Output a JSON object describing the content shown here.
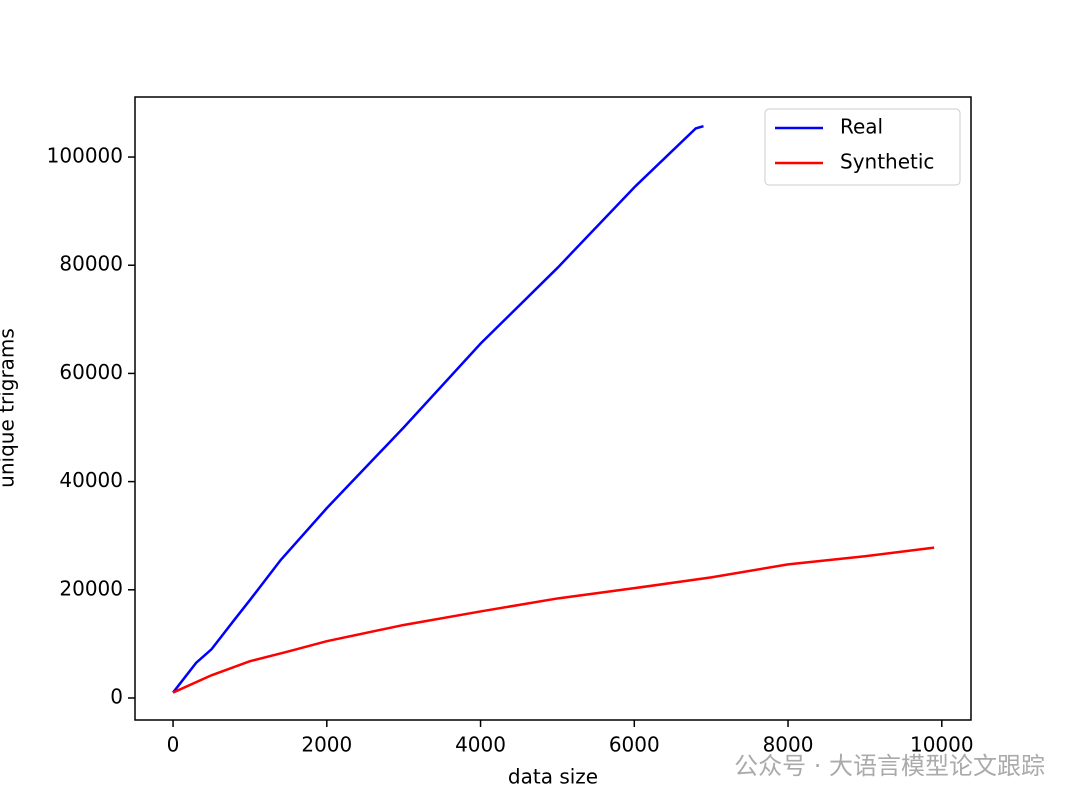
{
  "chart_data": {
    "type": "line",
    "xlabel": "data size",
    "ylabel": "unique trigrams",
    "xlim": [
      -495,
      10380
    ],
    "ylim": [
      -4070,
      111100
    ],
    "xticks": [
      0,
      2000,
      4000,
      6000,
      8000,
      10000
    ],
    "yticks": [
      0,
      20000,
      40000,
      60000,
      80000,
      100000
    ],
    "legend": "upper right",
    "series": [
      {
        "name": "Real",
        "color": "#0000ff",
        "x": [
          0,
          300,
          500,
          800,
          1000,
          1400,
          2000,
          3000,
          4000,
          5000,
          6000,
          6800,
          6900
        ],
        "values": [
          1000,
          6500,
          9000,
          14500,
          18100,
          25500,
          35100,
          50000,
          65500,
          79500,
          94400,
          105300,
          105700
        ]
      },
      {
        "name": "Synthetic",
        "color": "#ff0000",
        "x": [
          0,
          500,
          1000,
          1500,
          2000,
          3000,
          4000,
          5000,
          6000,
          7000,
          8000,
          9000,
          9900
        ],
        "values": [
          1000,
          4200,
          6800,
          8600,
          10500,
          13500,
          16000,
          18400,
          20300,
          22300,
          24700,
          26200,
          27800
        ]
      }
    ],
    "watermark": "公众号 · 大语言模型论文跟踪"
  }
}
